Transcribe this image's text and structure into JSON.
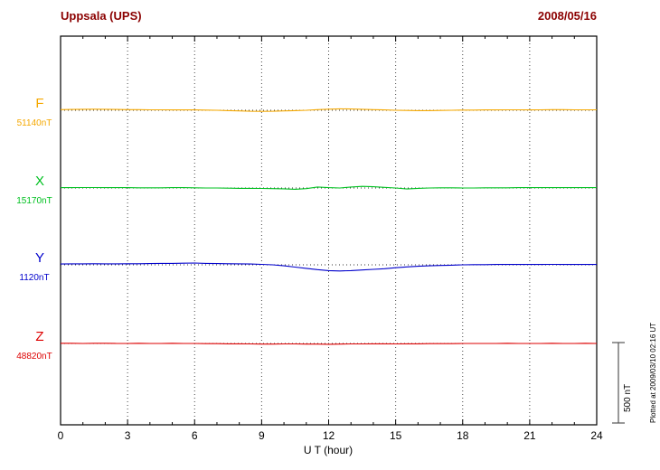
{
  "colors": {
    "header": "#8B0000",
    "frame": "#000000",
    "grid": "#444444",
    "baseline": "#333333",
    "scale_bar": "#555555"
  },
  "chart_data": {
    "type": "line",
    "station": "Uppsala (UPS)",
    "date": "2008/05/16",
    "xlabel": "U T (hour)",
    "xlim": [
      0,
      24
    ],
    "x_major_ticks": [
      0,
      3,
      6,
      9,
      12,
      15,
      18,
      21,
      24
    ],
    "grid_hours": [
      3,
      6,
      9,
      12,
      15,
      18,
      21
    ],
    "grid": "dotted-vertical",
    "legend_position": "left",
    "sample_step_hours": 0.5,
    "scale_bar": {
      "label": "500 nT",
      "nT": 500
    },
    "plotted_at": "Plotted at 2009/03/10 02:16 UT",
    "series": [
      {
        "name": "F",
        "baseline_label": "51140nT",
        "color": "#F5A800",
        "offsets_nT": [
          4,
          5,
          6,
          7,
          6,
          5,
          4,
          4,
          3,
          3,
          2,
          2,
          2,
          1,
          0,
          -2,
          -4,
          -6,
          -7,
          -6,
          -4,
          -2,
          0,
          4,
          7,
          9,
          8,
          6,
          4,
          2,
          0,
          -1,
          -2,
          -2,
          -1,
          0,
          1,
          1,
          2,
          2,
          3,
          3,
          2,
          3,
          4,
          4,
          3,
          3,
          3
        ]
      },
      {
        "name": "X",
        "baseline_label": "15170nT",
        "color": "#00C020",
        "offsets_nT": [
          2,
          2,
          3,
          3,
          2,
          2,
          2,
          1,
          1,
          1,
          2,
          2,
          1,
          0,
          0,
          -1,
          -2,
          -2,
          -3,
          -4,
          -5,
          -8,
          -4,
          6,
          2,
          0,
          6,
          10,
          8,
          4,
          0,
          -6,
          -2,
          0,
          1,
          1,
          0,
          0,
          1,
          1,
          1,
          2,
          2,
          2,
          2,
          2,
          2,
          2,
          2
        ]
      },
      {
        "name": "Y",
        "baseline_label": "1120nT",
        "color": "#0000CC",
        "offsets_nT": [
          5,
          6,
          6,
          7,
          6,
          6,
          7,
          7,
          8,
          9,
          9,
          10,
          11,
          9,
          8,
          7,
          6,
          5,
          3,
          0,
          -6,
          -14,
          -22,
          -30,
          -36,
          -38,
          -36,
          -32,
          -28,
          -24,
          -18,
          -13,
          -9,
          -6,
          -4,
          -2,
          0,
          1,
          1,
          2,
          2,
          2,
          2,
          2,
          3,
          2,
          2,
          2,
          2
        ]
      },
      {
        "name": "Z",
        "baseline_label": "48820nT",
        "color": "#DD0000",
        "offsets_nT": [
          1,
          1,
          0,
          1,
          1,
          0,
          0,
          1,
          0,
          0,
          1,
          0,
          0,
          -1,
          -1,
          -2,
          -2,
          -3,
          -4,
          -4,
          -3,
          -3,
          -4,
          -4,
          -5,
          -4,
          -3,
          -3,
          -2,
          -2,
          -3,
          -2,
          -2,
          -1,
          -1,
          -1,
          0,
          0,
          0,
          0,
          1,
          0,
          0,
          0,
          1,
          0,
          0,
          1,
          0
        ]
      }
    ]
  }
}
